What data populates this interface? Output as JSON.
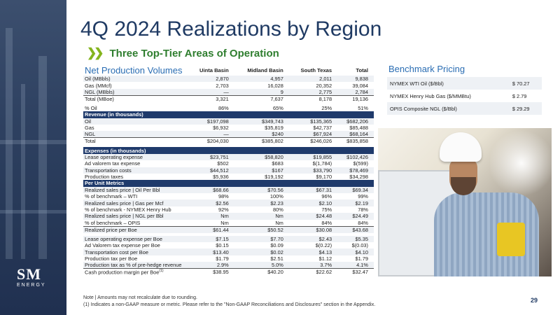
{
  "title": "4Q 2024 Realizations by Region",
  "subtitle": "Three Top-Tier Areas of Operation",
  "logo": {
    "mark": "SM",
    "word": "ENERGY"
  },
  "table": {
    "section_title": "Net Production Volumes",
    "columns": [
      "Uinta Basin",
      "Midland Basin",
      "South Texas",
      "Total"
    ],
    "volumes": [
      {
        "label": "Oil (MBbls)",
        "values": [
          "2,870",
          "4,957",
          "2,011",
          "9,838"
        ]
      },
      {
        "label": "Gas (MMcf)",
        "values": [
          "2,703",
          "16,028",
          "20,352",
          "39,084"
        ]
      },
      {
        "label": "NGL (MBbls)",
        "values": [
          "—",
          "9",
          "2,775",
          "2,784"
        ]
      },
      {
        "label": "Total (MBoe)",
        "values": [
          "3,321",
          "7,637",
          "8,178",
          "19,136"
        ]
      },
      {
        "label": "% Oil",
        "values": [
          "86%",
          "65%",
          "25%",
          "51%"
        ]
      }
    ],
    "revenue_header": "Revenue (in thousands)",
    "revenue": [
      {
        "label": "Oil",
        "values": [
          "$197,098",
          "$349,743",
          "$135,365",
          "$682,206"
        ]
      },
      {
        "label": "Gas",
        "values": [
          "$6,932",
          "$35,819",
          "$42,737",
          "$85,488"
        ]
      },
      {
        "label": "NGL",
        "values": [
          "—",
          "$240",
          "$67,924",
          "$68,164"
        ]
      },
      {
        "label": "Total",
        "values": [
          "$204,030",
          "$385,802",
          "$246,026",
          "$835,858"
        ]
      }
    ],
    "expenses_header": "Expenses (in thousands)",
    "expenses": [
      {
        "label": "Lease operating expense",
        "values": [
          "$23,751",
          "$58,820",
          "$19,855",
          "$102,426"
        ]
      },
      {
        "label": "Ad valorem tax expense",
        "values": [
          "$502",
          "$683",
          "$(1,784)",
          "$(599)"
        ]
      },
      {
        "label": "Transportation costs",
        "values": [
          "$44,512",
          "$167",
          "$33,790",
          "$78,469"
        ]
      },
      {
        "label": "Production taxes",
        "values": [
          "$5,936",
          "$19,192",
          "$9,170",
          "$34,298"
        ]
      }
    ],
    "per_unit_header": "Per Unit Metrics",
    "per_unit": [
      {
        "label": "Realized sales price | Oil Per Bbl",
        "values": [
          "$68.66",
          "$70.56",
          "$67.31",
          "$69.34"
        ]
      },
      {
        "label": "% of benchmark – WTI",
        "values": [
          "98%",
          "100%",
          "96%",
          "99%"
        ]
      },
      {
        "label": "Realized sales price | Gas per Mcf",
        "values": [
          "$2.56",
          "$2.23",
          "$2.10",
          "$2.19"
        ]
      },
      {
        "label": "% of benchmark - NYMEX Henry Hub",
        "values": [
          "92%",
          "80%",
          "75%",
          "78%"
        ]
      },
      {
        "label": "Realized sales price | NGL per Bbl",
        "values": [
          "Nm",
          "Nm",
          "$24.48",
          "$24.49"
        ]
      },
      {
        "label": "% of benchmark – OPIS",
        "values": [
          "Nm",
          "Nm",
          "84%",
          "84%"
        ]
      },
      {
        "label": "Realized price per Boe",
        "values": [
          "$61.44",
          "$50.52",
          "$30.08",
          "$43.68"
        ]
      }
    ],
    "cost_metrics": [
      {
        "label": "Lease operating expense per Boe",
        "values": [
          "$7.15",
          "$7.70",
          "$2.43",
          "$5.35"
        ]
      },
      {
        "label": "Ad Valorem tax expense per Boe",
        "values": [
          "$0.15",
          "$0.09",
          "$(0.22)",
          "$(0.03)"
        ]
      },
      {
        "label": "Transportation cost per Boe",
        "values": [
          "$13.40",
          "$0.02",
          "$4.13",
          "$4.10"
        ]
      },
      {
        "label": "Production tax per Boe",
        "values": [
          "$1.79",
          "$2.51",
          "$1.12",
          "$1.79"
        ]
      },
      {
        "label": "Production tax as % of pre-hedge revenue",
        "values": [
          "2.9%",
          "5.0%",
          "3.7%",
          "4.1%"
        ]
      },
      {
        "label": "Cash production margin per Boe",
        "sup": "(1)",
        "values": [
          "$38.95",
          "$40.20",
          "$22.62",
          "$32.47"
        ]
      }
    ]
  },
  "benchmark": {
    "title": "Benchmark Pricing",
    "rows": [
      {
        "label": "NYMEX WTI Oil ($/Bbl)",
        "value": "$ 70.27"
      },
      {
        "label": "NYMEX Henry Hub Gas ($/MMBtu)",
        "value": "$   2.79"
      },
      {
        "label": "OPIS Composite NGL ($/Bbl)",
        "value": "$ 29.29"
      }
    ]
  },
  "notes": {
    "note1": "Note | Amounts may not recalculate due to rounding.",
    "note2": "(1)    Indicates a non-GAAP measure or metric. Please refer to the \"Non-GAAP Reconciliations and Disclosures\" section in the Appendix."
  },
  "page_number": "29"
}
